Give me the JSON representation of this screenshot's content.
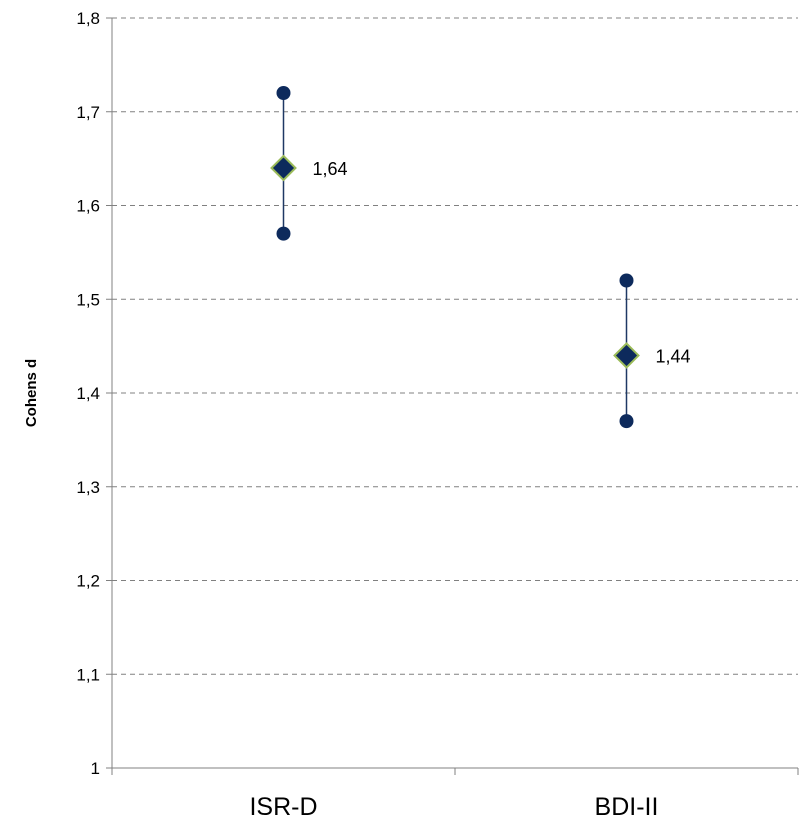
{
  "chart_data": {
    "type": "scatter",
    "title": "",
    "xlabel": "",
    "ylabel": "Cohens d",
    "ylim": [
      1,
      1.8
    ],
    "y_ticks": [
      1,
      1.1,
      1.2,
      1.3,
      1.4,
      1.5,
      1.6,
      1.7,
      1.8
    ],
    "y_tick_labels": [
      "1",
      "1,1",
      "1,2",
      "1,3",
      "1,4",
      "1,5",
      "1,6",
      "1,7",
      "1,8"
    ],
    "grid": "horizontal dashed",
    "legend": "none",
    "categories": [
      "ISR-D",
      "BDI-II"
    ],
    "points": [
      {
        "category": "ISR-D",
        "value": 1.64,
        "lower": 1.57,
        "upper": 1.72,
        "label": "1,64"
      },
      {
        "category": "BDI-II",
        "value": 1.44,
        "lower": 1.37,
        "upper": 1.52,
        "label": "1,44"
      }
    ],
    "colors": {
      "marker_fill": "#0d2a5c",
      "marker_edge": "#9bbb59",
      "whisker": "#1f3864",
      "gridline": "#808080",
      "axis": "#808080"
    }
  }
}
